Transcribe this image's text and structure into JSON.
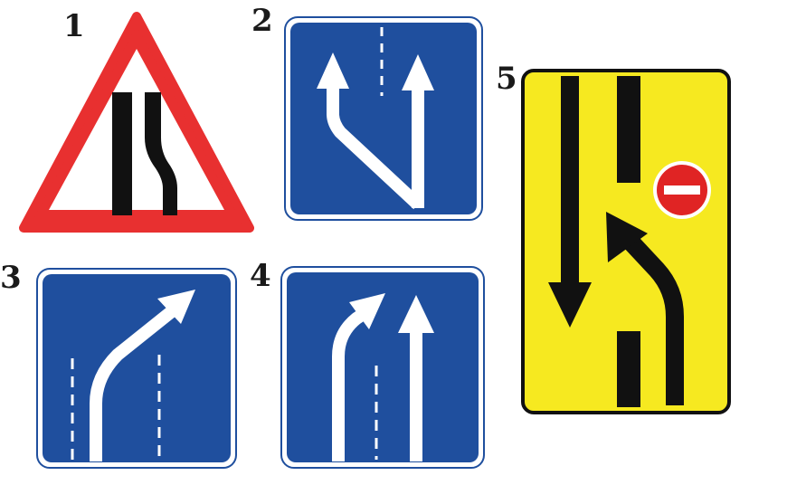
{
  "signs": [
    {
      "number": "1",
      "name": "road-narrows-right",
      "shape": "triangle"
    },
    {
      "number": "2",
      "name": "lane-merge-left",
      "shape": "square"
    },
    {
      "number": "3",
      "name": "lane-turn-right",
      "shape": "square"
    },
    {
      "number": "4",
      "name": "lane-begins-right-curve",
      "shape": "square"
    },
    {
      "number": "5",
      "name": "detour-lane-change",
      "shape": "rectangle"
    }
  ],
  "colors": {
    "sign_blue": "#1f4f9e",
    "warning_red": "#e83030",
    "detour_yellow": "#f6e920",
    "marking_white": "#ffffff",
    "road_black": "#111111",
    "no_entry_red": "#e02424"
  }
}
